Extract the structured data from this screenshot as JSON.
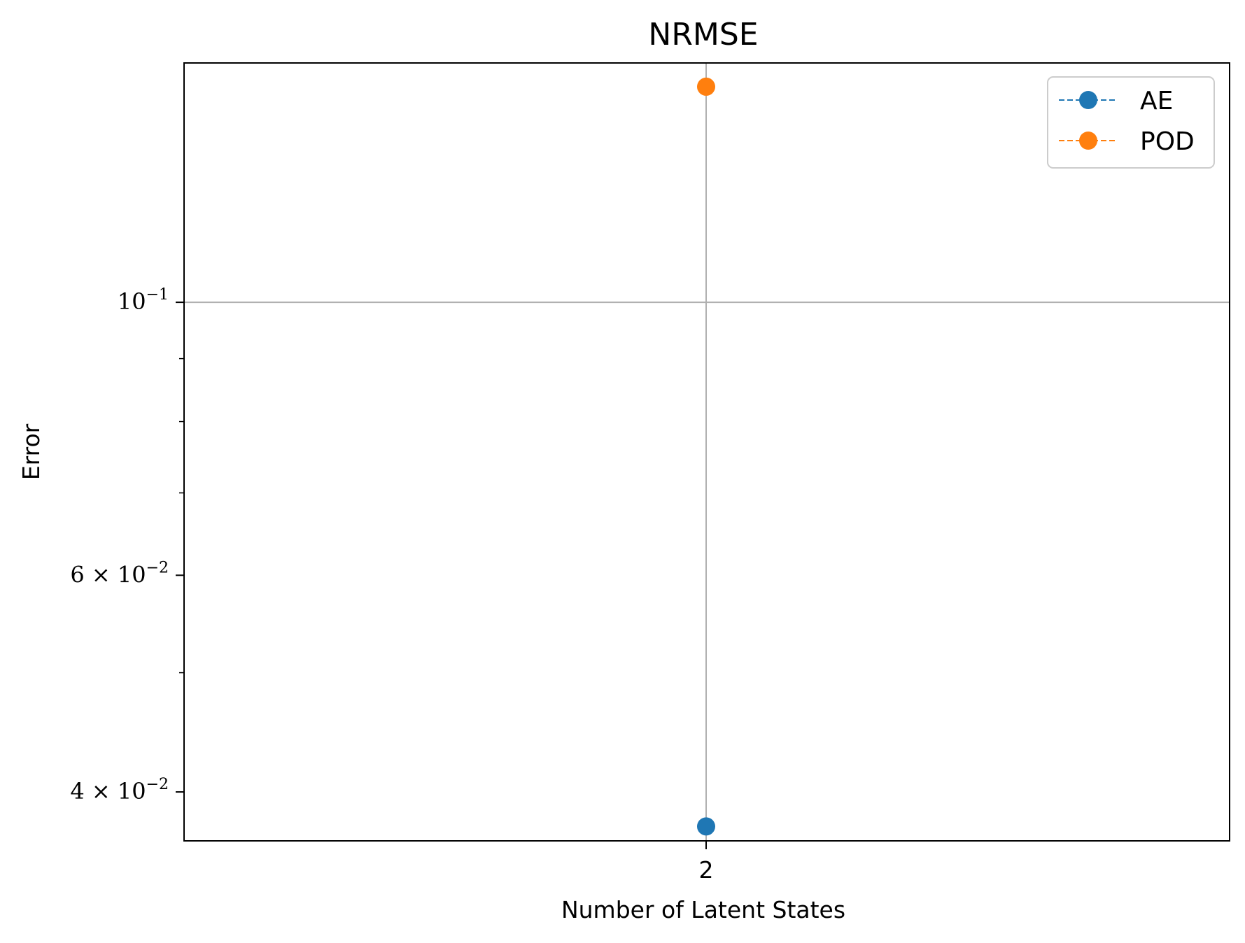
{
  "chart_data": {
    "type": "scatter",
    "title": "NRMSE",
    "xlabel": "Number of Latent States",
    "ylabel": "Error",
    "x": [
      2
    ],
    "x_tick_labels": [
      "2"
    ],
    "y_scale": "log",
    "ylim": [
      0.0365,
      0.1565
    ],
    "y_major_ticks": [
      {
        "value": 0.1,
        "base": "10",
        "exp": "−1"
      },
      {
        "value": 0.06,
        "base": "6 × 10",
        "exp": "−2"
      },
      {
        "value": 0.04,
        "base": "4 × 10",
        "exp": "−2"
      }
    ],
    "y_minor_ticks": [
      0.09,
      0.08,
      0.07,
      0.05
    ],
    "grid": true,
    "legend_position": "top-right",
    "series": [
      {
        "name": "AE",
        "values": [
          0.0375
        ],
        "color": "#1f77b4",
        "line_style": "dashed",
        "marker": "circle"
      },
      {
        "name": "POD",
        "values": [
          0.1497
        ],
        "color": "#ff7f0e",
        "line_style": "dashed",
        "marker": "circle"
      }
    ]
  }
}
